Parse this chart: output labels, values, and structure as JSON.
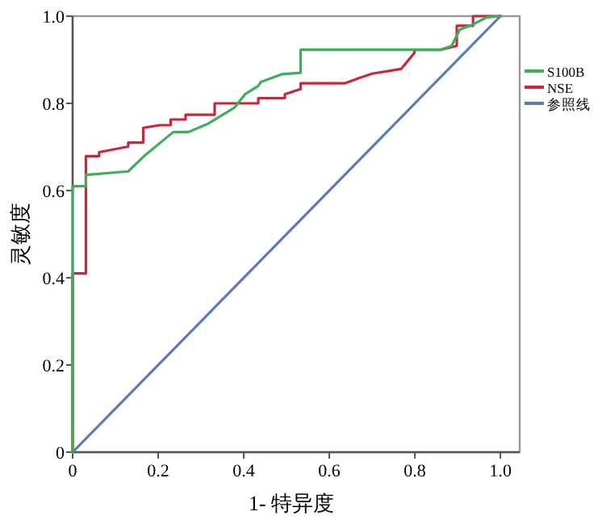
{
  "chart_data": {
    "type": "line",
    "xlabel": "1- 特异度",
    "ylabel": "灵敏度",
    "xlim": [
      0,
      1.045
    ],
    "ylim": [
      0,
      1
    ],
    "xticks": [
      0,
      {
        "value": 0.2,
        "label": "0.2"
      },
      {
        "value": 0.4,
        "label": "0.4"
      },
      {
        "value": 0.6,
        "label": "0.6"
      },
      {
        "value": 0.8,
        "label": "0.8"
      },
      {
        "value": 1,
        "label": "1.0"
      }
    ],
    "yticks": [
      0,
      {
        "value": 0.2,
        "label": "0.2"
      },
      {
        "value": 0.4,
        "label": "0.4"
      },
      {
        "value": 0.6,
        "label": "0.6"
      },
      {
        "value": 0.8,
        "label": "0.8"
      },
      {
        "value": 1,
        "label": "1.0"
      }
    ],
    "legend": "right",
    "series": [
      {
        "name": "S100B",
        "color": "#3fae5a",
        "x": [
          0,
          0,
          0.031,
          0.031,
          0.13,
          0.167,
          0.235,
          0.27,
          0.316,
          0.378,
          0.403,
          0.434,
          0.44,
          0.49,
          0.533,
          0.533,
          0.861,
          0.886,
          0.905,
          0.936,
          0.967,
          1
        ],
        "values": [
          0,
          0.61,
          0.61,
          0.636,
          0.644,
          0.679,
          0.734,
          0.734,
          0.753,
          0.79,
          0.821,
          0.84,
          0.849,
          0.867,
          0.87,
          0.923,
          0.923,
          0.932,
          0.969,
          0.981,
          0.997,
          1
        ]
      },
      {
        "name": "NSE",
        "color": "#c8283a",
        "x": [
          0,
          0,
          0.031,
          0.031,
          0.062,
          0.062,
          0.13,
          0.13,
          0.165,
          0.165,
          0.204,
          0.229,
          0.229,
          0.264,
          0.264,
          0.332,
          0.332,
          0.434,
          0.434,
          0.496,
          0.496,
          0.533,
          0.533,
          0.636,
          0.669,
          0.669,
          0.7,
          0.7,
          0.768,
          0.768,
          0.799,
          0.799,
          0.86,
          0.898,
          0.898,
          0.936,
          0.936,
          1
        ],
        "values": [
          0,
          0.41,
          0.41,
          0.679,
          0.679,
          0.688,
          0.701,
          0.71,
          0.71,
          0.744,
          0.75,
          0.75,
          0.763,
          0.763,
          0.774,
          0.774,
          0.8,
          0.8,
          0.812,
          0.812,
          0.821,
          0.833,
          0.846,
          0.846,
          0.858,
          0.858,
          0.868,
          0.868,
          0.879,
          0.879,
          0.916,
          0.923,
          0.923,
          0.932,
          0.978,
          0.978,
          1,
          1
        ]
      },
      {
        "name": "参照线",
        "color": "#5b7bb5",
        "x": [
          0,
          1
        ],
        "values": [
          0,
          1
        ]
      }
    ]
  }
}
